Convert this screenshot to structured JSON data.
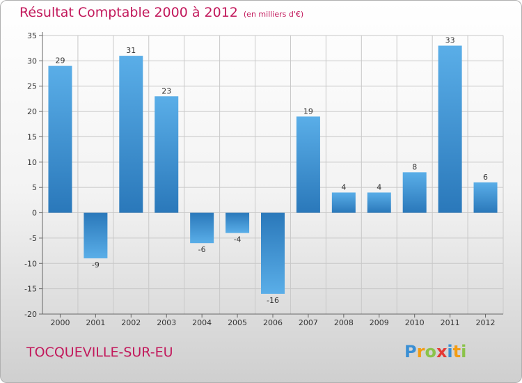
{
  "chart_data": {
    "type": "bar",
    "title": "Résultat Comptable 2000 à 2012",
    "subtitle": "(en milliers d'€)",
    "categories": [
      "2000",
      "2001",
      "2002",
      "2003",
      "2004",
      "2005",
      "2006",
      "2007",
      "2008",
      "2009",
      "2010",
      "2011",
      "2012"
    ],
    "values": [
      29,
      -9,
      31,
      23,
      -6,
      -4,
      -16,
      19,
      4,
      4,
      8,
      33,
      6
    ],
    "ylim": [
      -20,
      35
    ],
    "yticks": [
      35,
      30,
      25,
      20,
      15,
      10,
      5,
      0,
      -5,
      -10,
      -15,
      -20
    ],
    "ytick_labels": [
      "35",
      "30",
      "25",
      "20",
      "15",
      "10",
      "5",
      "0",
      "-5",
      "-10",
      "-15",
      "-20"
    ],
    "xlabel": "",
    "ylabel": "",
    "grid": true,
    "bar_color": "#3a8fd4"
  },
  "footer": {
    "city": "TOCQUEVILLE-SUR-EU"
  },
  "logo": {
    "letters": [
      "P",
      "r",
      "o",
      "x",
      "i",
      "t",
      "i"
    ],
    "colors": [
      "#3a8fd4",
      "#f39c12",
      "#8bc34a",
      "#e53935",
      "#3a8fd4",
      "#f39c12",
      "#8bc34a"
    ]
  }
}
